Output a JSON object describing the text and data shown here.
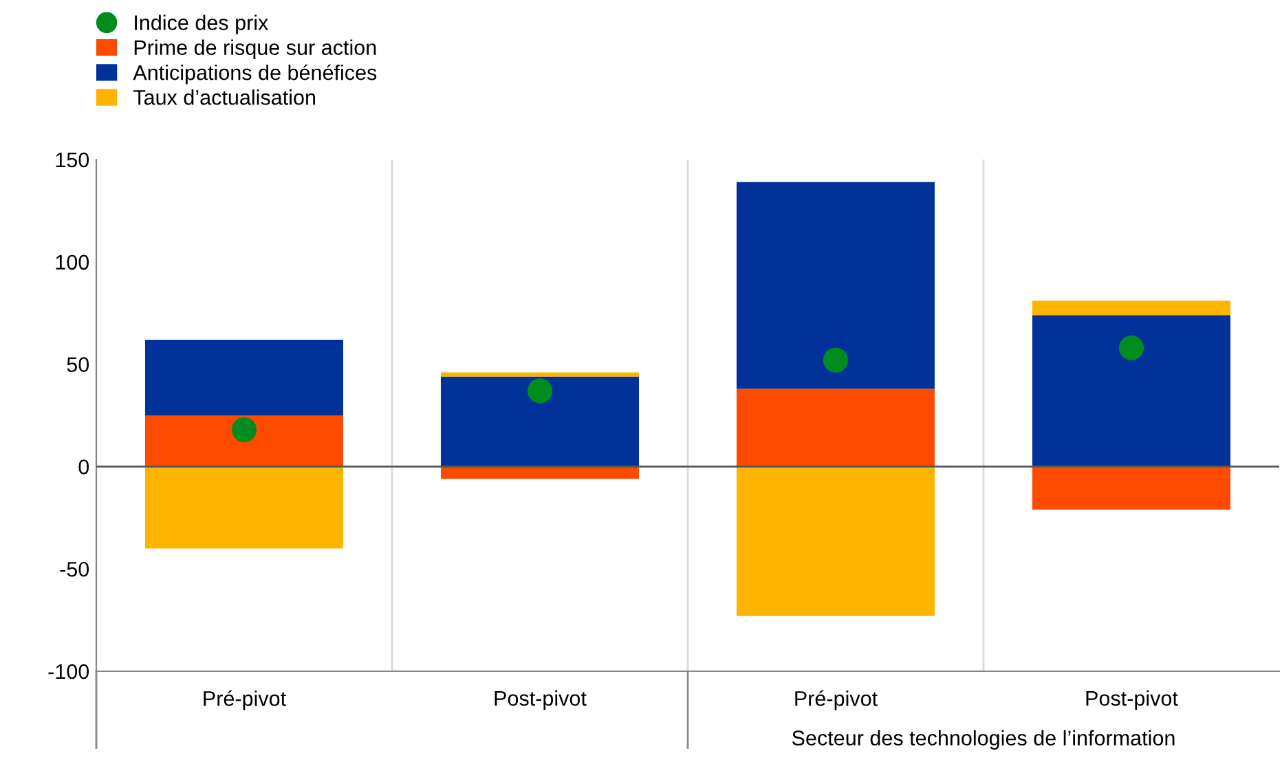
{
  "chart_data": {
    "type": "bar",
    "stacked": true,
    "categories": [
      "Pré-pivot",
      "Post-pivot",
      "Pré-pivot",
      "Post-pivot"
    ],
    "series": [
      {
        "name": "Indice des prix",
        "type": "scatter",
        "color": "#008c1e",
        "values": [
          18,
          37,
          52,
          58
        ]
      },
      {
        "name": "Prime de risque sur action",
        "color": "#ff4b00",
        "values": [
          25,
          -6,
          38,
          -21
        ]
      },
      {
        "name": "Anticipations de bénéfices",
        "color": "#003299",
        "values": [
          37,
          44,
          101,
          74
        ]
      },
      {
        "name": "Taux d’actualisation",
        "color": "#ffb400",
        "values": [
          -40,
          2,
          -73,
          7
        ]
      }
    ],
    "ylim": [
      -100,
      150
    ],
    "yticks": [
      -100,
      -50,
      0,
      50,
      100,
      150
    ],
    "grid": "x",
    "legend": "top left",
    "marker": "circle",
    "annotations": [
      "Secteur des technologies de l’information"
    ]
  }
}
